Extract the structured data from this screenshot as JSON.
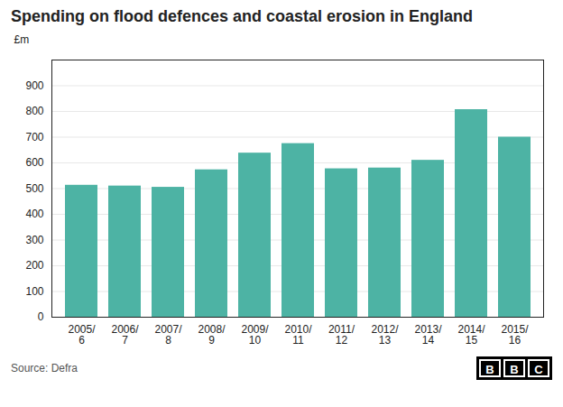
{
  "chart_data": {
    "type": "bar",
    "title": "Spending on flood defences and coastal erosion in England",
    "ylabel": "£m",
    "annotations": [
      "Source: Defra",
      "BBC"
    ],
    "categories": [
      "2005/\n6",
      "2006/\n7",
      "2007/\n8",
      "2008/\n9",
      "2009/\n10",
      "2010/\n11",
      "2011/\n12",
      "2012/\n13",
      "2013/\n14",
      "2014/\n15",
      "2015/\n16"
    ],
    "values": [
      513,
      510,
      505,
      573,
      638,
      675,
      577,
      580,
      610,
      807,
      700
    ],
    "color": "#4db3a4",
    "ylim": [
      0,
      1000
    ],
    "yticks": [
      0,
      100,
      200,
      300,
      400,
      500,
      600,
      700,
      800,
      900
    ],
    "grid": true
  }
}
